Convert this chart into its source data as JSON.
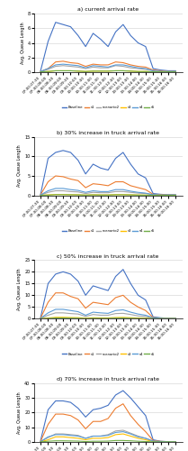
{
  "x_labels": [
    "07:00-07:30",
    "07:30-08:00",
    "08:00-08:30",
    "08:30-09:00",
    "09:00-09:30",
    "09:30-10:00",
    "10:00-10:30",
    "10:30-11:00",
    "11:00-11:30",
    "11:30-12:00",
    "12:00-12:30",
    "12:30-13:00",
    "13:00-13:30",
    "13:30-14:00",
    "14:00-14:30",
    "14:30-15:00",
    "15:00-15:30",
    "15:30-16:00",
    "16:00-16:30"
  ],
  "series_labels": [
    "Baseline",
    "s1",
    "scenario2",
    "s3",
    "s4",
    "s5"
  ],
  "series_colors": [
    "#4472C4",
    "#ED7D31",
    "#A5A5A5",
    "#FFC000",
    "#5B9BD5",
    "#70AD47"
  ],
  "charts": [
    {
      "title": "a) current arrival rate",
      "ylim": [
        0,
        8
      ],
      "yticks": [
        0,
        2,
        4,
        6,
        8
      ],
      "data": [
        [
          0.2,
          4.2,
          6.8,
          6.5,
          6.2,
          5.0,
          3.5,
          5.3,
          4.5,
          3.5,
          5.5,
          6.5,
          5.0,
          4.0,
          3.5,
          0.5,
          0.3,
          0.2,
          0.2
        ],
        [
          0.1,
          0.5,
          1.4,
          1.5,
          1.3,
          1.2,
          0.8,
          1.1,
          1.0,
          1.0,
          1.4,
          1.3,
          1.0,
          0.8,
          0.7,
          0.3,
          0.2,
          0.1,
          0.1
        ],
        [
          0.1,
          0.4,
          0.8,
          0.9,
          0.8,
          0.7,
          0.5,
          0.7,
          0.6,
          0.6,
          0.9,
          0.8,
          0.6,
          0.5,
          0.4,
          0.2,
          0.1,
          0.1,
          0.1
        ],
        [
          0.05,
          0.1,
          0.2,
          0.2,
          0.2,
          0.15,
          0.1,
          0.15,
          0.15,
          0.15,
          0.2,
          0.2,
          0.15,
          0.1,
          0.1,
          0.05,
          0.05,
          0.05,
          0.05
        ],
        [
          0.1,
          0.5,
          1.0,
          1.1,
          1.0,
          0.9,
          0.6,
          0.9,
          0.8,
          0.7,
          1.0,
          1.0,
          0.8,
          0.6,
          0.5,
          0.2,
          0.1,
          0.1,
          0.1
        ],
        [
          0.05,
          0.1,
          0.2,
          0.2,
          0.2,
          0.15,
          0.1,
          0.15,
          0.15,
          0.15,
          0.2,
          0.2,
          0.15,
          0.1,
          0.1,
          0.05,
          0.05,
          0.05,
          0.05
        ]
      ]
    },
    {
      "title": "b) 30% increase in truck arrival rate",
      "ylim": [
        0,
        15
      ],
      "yticks": [
        0,
        5,
        10,
        15
      ],
      "data": [
        [
          0.3,
          9.5,
          11.0,
          11.5,
          11.0,
          9.0,
          5.5,
          8.0,
          7.0,
          6.5,
          9.5,
          11.0,
          8.0,
          5.5,
          4.5,
          0.5,
          0.3,
          0.2,
          0.2
        ],
        [
          0.2,
          3.5,
          5.0,
          4.8,
          4.2,
          3.8,
          2.0,
          3.0,
          2.8,
          2.5,
          3.5,
          3.5,
          2.5,
          2.0,
          1.5,
          0.3,
          0.2,
          0.1,
          0.1
        ],
        [
          0.1,
          0.8,
          1.2,
          1.2,
          1.0,
          0.9,
          0.5,
          0.8,
          0.7,
          0.7,
          1.0,
          1.0,
          0.8,
          0.6,
          0.5,
          0.2,
          0.1,
          0.1,
          0.1
        ],
        [
          0.05,
          0.15,
          0.25,
          0.25,
          0.2,
          0.18,
          0.1,
          0.18,
          0.15,
          0.15,
          0.22,
          0.22,
          0.18,
          0.12,
          0.1,
          0.05,
          0.05,
          0.05,
          0.05
        ],
        [
          0.15,
          1.2,
          1.8,
          1.8,
          1.5,
          1.3,
          0.8,
          1.2,
          1.0,
          1.0,
          1.5,
          1.5,
          1.1,
          0.8,
          0.6,
          0.2,
          0.1,
          0.1,
          0.1
        ],
        [
          0.05,
          0.1,
          0.2,
          0.2,
          0.18,
          0.15,
          0.1,
          0.15,
          0.12,
          0.12,
          0.18,
          0.18,
          0.14,
          0.1,
          0.08,
          0.05,
          0.05,
          0.05,
          0.05
        ]
      ]
    },
    {
      "title": "c) 50% increase in truck arrival rate",
      "ylim": [
        0,
        25
      ],
      "yticks": [
        0,
        5,
        10,
        15,
        20,
        25
      ],
      "data": [
        [
          0.5,
          15.0,
          19.0,
          20.0,
          19.0,
          16.0,
          10.0,
          14.0,
          13.0,
          12.0,
          18.0,
          21.0,
          15.0,
          10.0,
          8.0,
          0.8,
          0.4,
          0.2,
          0.2
        ],
        [
          0.3,
          7.0,
          11.0,
          11.0,
          9.5,
          8.5,
          4.5,
          7.0,
          6.5,
          6.0,
          9.0,
          10.0,
          7.0,
          5.0,
          3.5,
          0.5,
          0.2,
          0.1,
          0.1
        ],
        [
          0.2,
          1.5,
          2.5,
          2.5,
          2.2,
          2.0,
          1.0,
          1.8,
          1.5,
          1.5,
          2.2,
          2.3,
          1.8,
          1.2,
          1.0,
          0.3,
          0.1,
          0.1,
          0.1
        ],
        [
          0.08,
          0.3,
          0.6,
          0.6,
          0.5,
          0.45,
          0.25,
          0.4,
          0.35,
          0.35,
          0.5,
          0.55,
          0.42,
          0.3,
          0.22,
          0.08,
          0.06,
          0.05,
          0.05
        ],
        [
          0.2,
          2.5,
          4.0,
          4.0,
          3.5,
          3.0,
          1.5,
          2.8,
          2.5,
          2.3,
          3.5,
          3.8,
          2.8,
          2.0,
          1.5,
          0.35,
          0.15,
          0.1,
          0.1
        ],
        [
          0.05,
          0.15,
          0.3,
          0.3,
          0.25,
          0.22,
          0.12,
          0.2,
          0.18,
          0.18,
          0.25,
          0.28,
          0.2,
          0.15,
          0.12,
          0.06,
          0.05,
          0.05,
          0.05
        ]
      ]
    },
    {
      "title": "d) 70% increase in truck arrival rate",
      "ylim": [
        0,
        40
      ],
      "yticks": [
        0,
        10,
        20,
        30,
        40
      ],
      "data": [
        [
          1.0,
          22.0,
          28.0,
          28.0,
          27.0,
          23.0,
          17.0,
          22.0,
          23.0,
          25.0,
          32.0,
          35.0,
          30.0,
          24.0,
          18.0,
          1.5,
          0.5,
          0.2,
          0.2
        ],
        [
          0.5,
          12.0,
          19.0,
          19.0,
          18.0,
          15.0,
          9.0,
          14.0,
          14.0,
          16.0,
          23.0,
          26.0,
          18.0,
          12.0,
          7.0,
          1.0,
          0.4,
          0.2,
          0.2
        ],
        [
          0.3,
          3.0,
          5.5,
          5.5,
          5.0,
          4.5,
          2.5,
          4.0,
          4.0,
          5.0,
          7.5,
          8.0,
          6.0,
          4.0,
          2.5,
          0.6,
          0.2,
          0.1,
          0.1
        ],
        [
          0.1,
          1.5,
          3.5,
          3.5,
          3.0,
          2.5,
          1.5,
          2.5,
          2.5,
          3.0,
          5.0,
          5.5,
          4.0,
          2.5,
          1.5,
          0.3,
          0.1,
          0.05,
          0.05
        ],
        [
          0.3,
          3.5,
          5.0,
          5.0,
          4.5,
          4.0,
          2.5,
          4.0,
          4.0,
          4.5,
          6.5,
          7.0,
          5.5,
          3.5,
          2.5,
          0.6,
          0.2,
          0.1,
          0.1
        ],
        [
          0.1,
          0.5,
          0.8,
          0.8,
          0.7,
          0.6,
          0.3,
          0.5,
          0.5,
          0.6,
          1.0,
          1.0,
          0.8,
          0.5,
          0.3,
          0.08,
          0.05,
          0.05,
          0.05
        ]
      ]
    }
  ],
  "ylabel": "Avg. Queue Length",
  "legend_labels": [
    "Baseline",
    "s1",
    "scenario2",
    "s3",
    "s4",
    "s5"
  ]
}
